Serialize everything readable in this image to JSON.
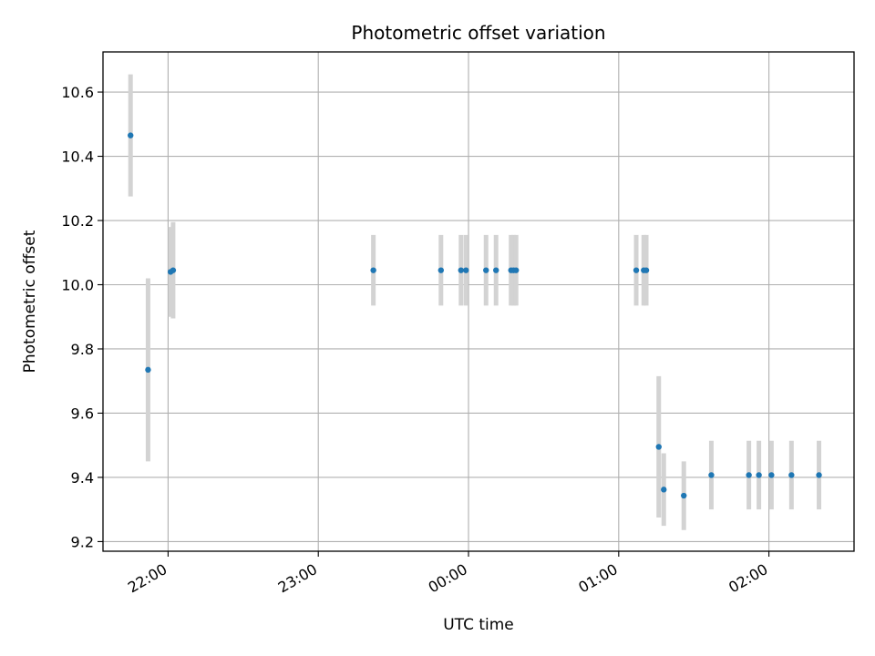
{
  "chart_data": {
    "type": "scatter",
    "title": "Photometric offset variation",
    "xlabel": "UTC time",
    "ylabel": "Photometric offset",
    "x_axis_type": "time",
    "xlim": [
      "21:34",
      "02:34"
    ],
    "ylim": [
      9.17,
      10.725
    ],
    "x_ticks": [
      "22:00",
      "23:00",
      "00:00",
      "01:00",
      "02:00"
    ],
    "y_ticks": [
      "9.2",
      "9.4",
      "9.6",
      "9.8",
      "10.0",
      "10.2",
      "10.4",
      "10.6"
    ],
    "grid": true,
    "marker_color": "#1f77b4",
    "errorbar_color": "#d3d3d3",
    "points": [
      {
        "x": "21:45",
        "y": 10.465,
        "err": 0.19
      },
      {
        "x": "21:52",
        "y": 9.735,
        "err": 0.285
      },
      {
        "x": "22:01",
        "y": 10.04,
        "err": 0.14
      },
      {
        "x": "22:02",
        "y": 10.045,
        "err": 0.15
      },
      {
        "x": "23:22",
        "y": 10.045,
        "err": 0.11
      },
      {
        "x": "23:49",
        "y": 10.045,
        "err": 0.11
      },
      {
        "x": "23:57",
        "y": 10.045,
        "err": 0.11
      },
      {
        "x": "23:59",
        "y": 10.045,
        "err": 0.11
      },
      {
        "x": "00:07",
        "y": 10.045,
        "err": 0.11
      },
      {
        "x": "00:11",
        "y": 10.045,
        "err": 0.11
      },
      {
        "x": "00:17",
        "y": 10.045,
        "err": 0.11
      },
      {
        "x": "00:18",
        "y": 10.045,
        "err": 0.11
      },
      {
        "x": "00:19",
        "y": 10.045,
        "err": 0.11
      },
      {
        "x": "01:07",
        "y": 10.045,
        "err": 0.11
      },
      {
        "x": "01:10",
        "y": 10.045,
        "err": 0.11
      },
      {
        "x": "01:11",
        "y": 10.045,
        "err": 0.11
      },
      {
        "x": "01:16",
        "y": 9.495,
        "err": 0.22
      },
      {
        "x": "01:18",
        "y": 9.362,
        "err": 0.113
      },
      {
        "x": "01:26",
        "y": 9.343,
        "err": 0.107
      },
      {
        "x": "01:37",
        "y": 9.407,
        "err": 0.107
      },
      {
        "x": "01:52",
        "y": 9.407,
        "err": 0.107
      },
      {
        "x": "01:56",
        "y": 9.407,
        "err": 0.107
      },
      {
        "x": "02:01",
        "y": 9.407,
        "err": 0.107
      },
      {
        "x": "02:09",
        "y": 9.407,
        "err": 0.107
      },
      {
        "x": "02:20",
        "y": 9.407,
        "err": 0.107
      }
    ]
  }
}
